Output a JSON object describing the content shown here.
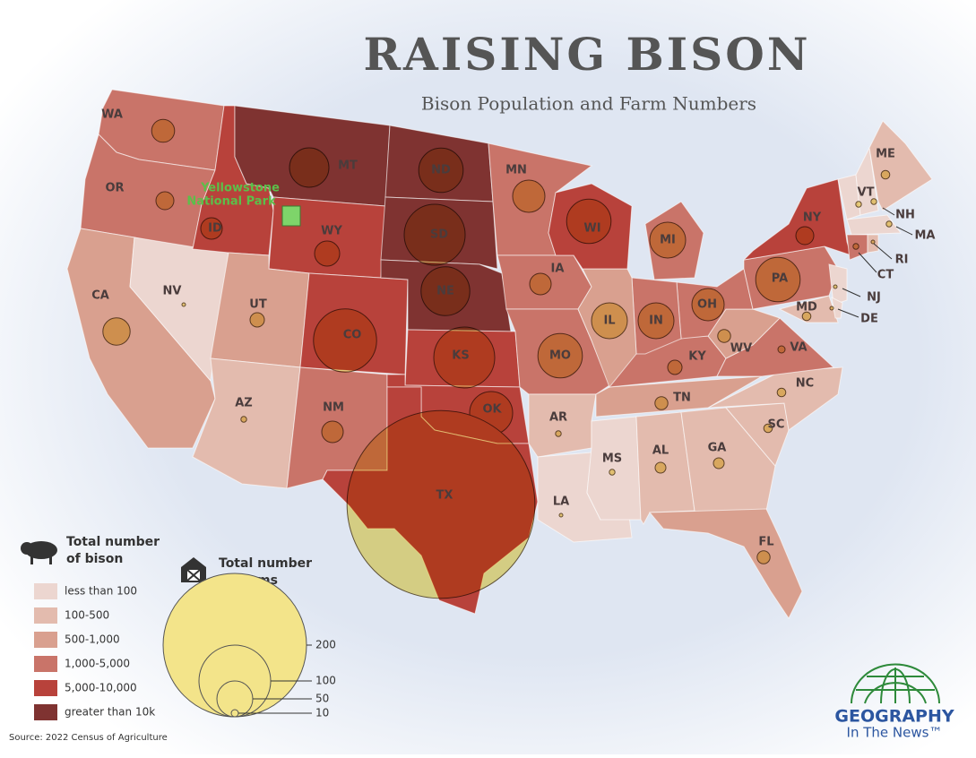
{
  "title": "RAISING BISON",
  "subtitle": "Bison Population and Farm Numbers",
  "yellowstone": [
    "Yellowstone",
    "National Park"
  ],
  "states": [
    {
      "label": "WA",
      "bison_class": 3,
      "farms": 32
    },
    {
      "label": "OR",
      "bison_class": 3,
      "farms": 25
    },
    {
      "label": "CA",
      "bison_class": 2,
      "farms": 38
    },
    {
      "label": "NV",
      "bison_class": 0,
      "farms": 5
    },
    {
      "label": "ID",
      "bison_class": 4,
      "farms": 30
    },
    {
      "label": "MT",
      "bison_class": 5,
      "farms": 55
    },
    {
      "label": "WY",
      "bison_class": 4,
      "farms": 35
    },
    {
      "label": "UT",
      "bison_class": 2,
      "farms": 20
    },
    {
      "label": "CO",
      "bison_class": 4,
      "farms": 88
    },
    {
      "label": "AZ",
      "bison_class": 1,
      "farms": 8
    },
    {
      "label": "NM",
      "bison_class": 3,
      "farms": 30
    },
    {
      "label": "ND",
      "bison_class": 5,
      "farms": 62
    },
    {
      "label": "SD",
      "bison_class": 5,
      "farms": 85
    },
    {
      "label": "NE",
      "bison_class": 5,
      "farms": 68
    },
    {
      "label": "KS",
      "bison_class": 4,
      "farms": 85
    },
    {
      "label": "OK",
      "bison_class": 4,
      "farms": 60
    },
    {
      "label": "TX",
      "bison_class": 4,
      "farms": 262
    },
    {
      "label": "MN",
      "bison_class": 3,
      "farms": 45
    },
    {
      "label": "IA",
      "bison_class": 3,
      "farms": 30
    },
    {
      "label": "MO",
      "bison_class": 3,
      "farms": 62
    },
    {
      "label": "AR",
      "bison_class": 1,
      "farms": 8
    },
    {
      "label": "LA",
      "bison_class": 0,
      "farms": 5
    },
    {
      "label": "MS",
      "bison_class": 0,
      "farms": 8
    },
    {
      "label": "AL",
      "bison_class": 1,
      "farms": 15
    },
    {
      "label": "GA",
      "bison_class": 1,
      "farms": 15
    },
    {
      "label": "FL",
      "bison_class": 2,
      "farms": 18
    },
    {
      "label": "SC",
      "bison_class": 1,
      "farms": 12
    },
    {
      "label": "NC",
      "bison_class": 1,
      "farms": 12
    },
    {
      "label": "TN",
      "bison_class": 2,
      "farms": 18
    },
    {
      "label": "KY",
      "bison_class": 3,
      "farms": 20
    },
    {
      "label": "VA",
      "bison_class": 3,
      "farms": 10
    },
    {
      "label": "WV",
      "bison_class": 2,
      "farms": 18
    },
    {
      "label": "OH",
      "bison_class": 3,
      "farms": 45
    },
    {
      "label": "IN",
      "bison_class": 3,
      "farms": 50
    },
    {
      "label": "IL",
      "bison_class": 2,
      "farms": 50
    },
    {
      "label": "WI",
      "bison_class": 4,
      "farms": 62
    },
    {
      "label": "MI",
      "bison_class": 3,
      "farms": 50
    },
    {
      "label": "PA",
      "bison_class": 3,
      "farms": 62
    },
    {
      "label": "NY",
      "bison_class": 4,
      "farms": 25
    },
    {
      "label": "NJ",
      "bison_class": 0,
      "farms": 5
    },
    {
      "label": "MD",
      "bison_class": 1,
      "farms": 12
    },
    {
      "label": "DE",
      "bison_class": 0,
      "farms": 5
    },
    {
      "label": "VT",
      "bison_class": 0,
      "farms": 8
    },
    {
      "label": "NH",
      "bison_class": 0,
      "farms": 8
    },
    {
      "label": "ME",
      "bison_class": 1,
      "farms": 12
    },
    {
      "label": "MA",
      "bison_class": 0,
      "farms": 8
    },
    {
      "label": "CT",
      "bison_class": 3,
      "farms": 8
    },
    {
      "label": "RI",
      "bison_class": 1,
      "farms": 5
    }
  ],
  "bison_legend": {
    "title": [
      "Total number",
      "of bison"
    ],
    "classes": [
      {
        "label": "less than 100",
        "color": "#ecd6d0"
      },
      {
        "label": "100-500",
        "color": "#e3bbae"
      },
      {
        "label": "500-1,000",
        "color": "#d9a08f"
      },
      {
        "label": "1,000-5,000",
        "color": "#c97469"
      },
      {
        "label": "5,000-10,000",
        "color": "#b8423b"
      },
      {
        "label": "greater than 10k",
        "color": "#7f3331"
      }
    ]
  },
  "farm_legend": {
    "title": [
      "Total number",
      "of farms"
    ],
    "values": [
      200,
      100,
      50,
      10
    ],
    "color": "#f3e48a"
  },
  "source": "Source: 2022 Census of Agriculture",
  "logo": {
    "name": "GEOGRAPHY",
    "tagline": "In The News™"
  }
}
